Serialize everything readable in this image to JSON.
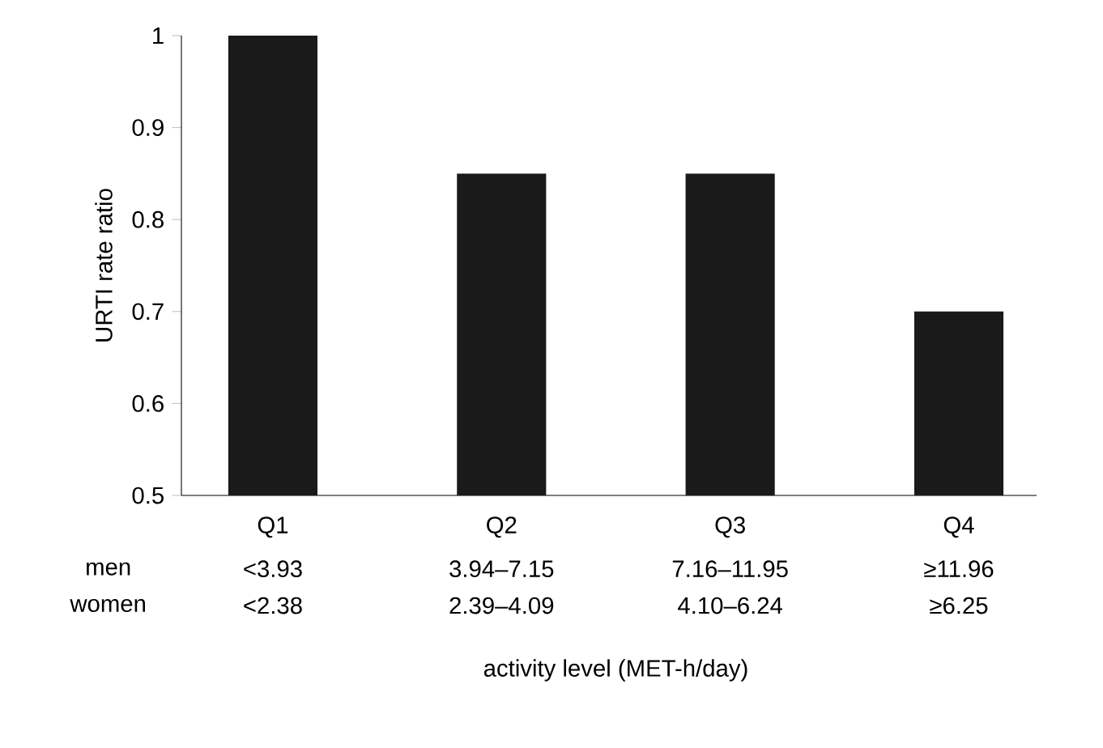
{
  "chart_data": {
    "type": "bar",
    "ylabel": "URTI rate ratio",
    "categories": [
      "Q1",
      "Q2",
      "Q3",
      "Q4"
    ],
    "values": [
      1,
      0.85,
      0.85,
      0.7
    ],
    "color": "#1a1a1a",
    "ylim": [
      0.5,
      1
    ],
    "yticks": [
      0.5,
      0.6,
      0.7,
      0.8,
      0.9,
      1
    ],
    "grid": false,
    "annotations": [
      "men",
      "<3.93",
      "3.94–7.15",
      "7.16–11.95",
      "≥11.96",
      "women",
      "<2.38",
      "2.39–4.09",
      "4.10–6.24",
      "≥6.25",
      "activity level (MET-h/day)"
    ]
  }
}
